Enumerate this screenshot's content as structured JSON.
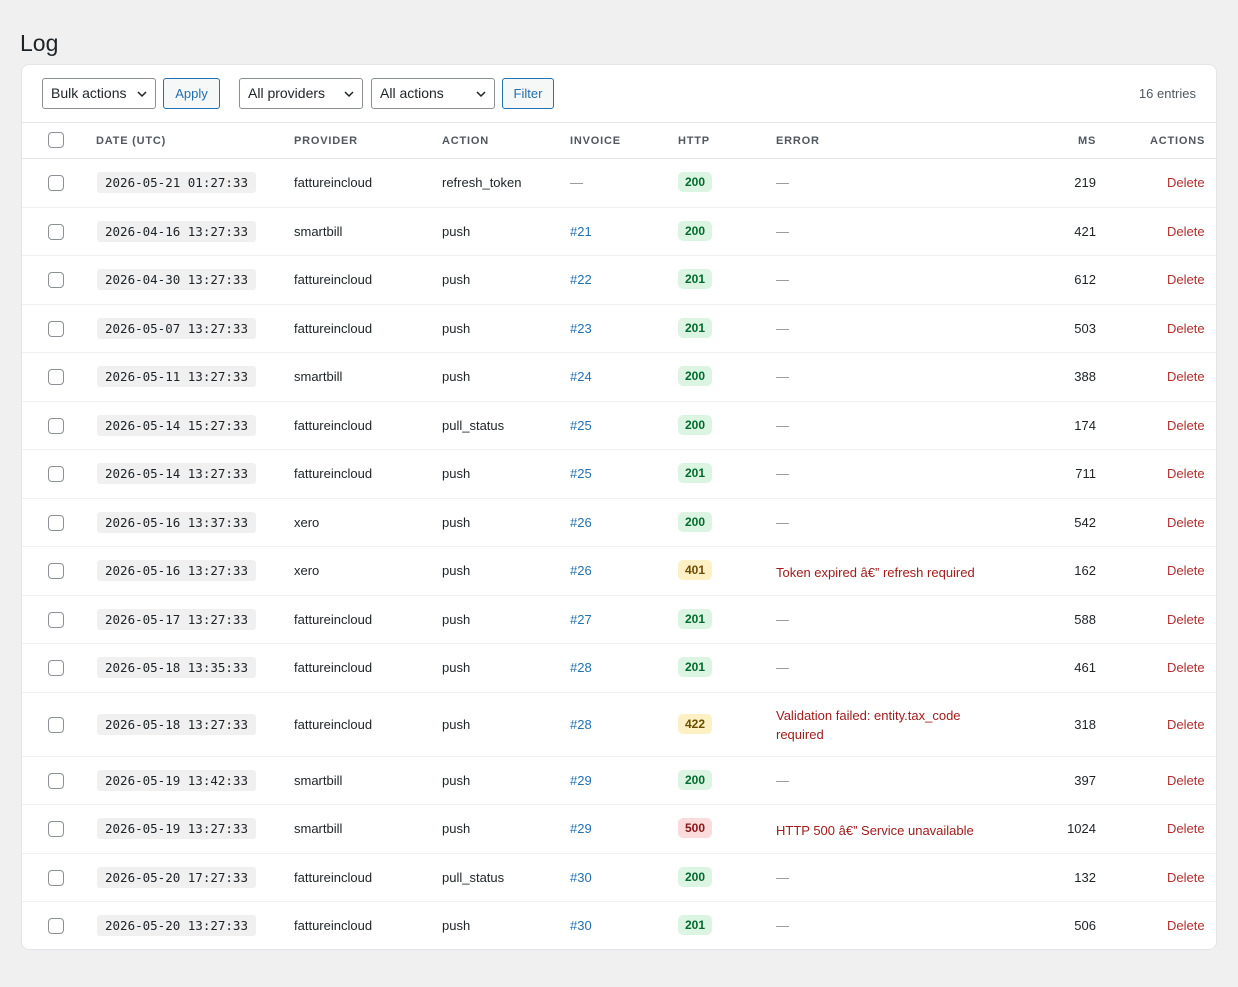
{
  "page": {
    "title": "Log"
  },
  "toolbar": {
    "bulk_actions": "Bulk actions",
    "apply": "Apply",
    "providers": "All providers",
    "actions": "All actions",
    "filter": "Filter",
    "entries": "16 entries"
  },
  "columns": [
    "DATE (UTC)",
    "PROVIDER",
    "ACTION",
    "INVOICE",
    "HTTP",
    "ERROR",
    "MS",
    "ACTIONS"
  ],
  "delete_label": "Delete",
  "rows": [
    {
      "date": "2026-05-21 01:27:33",
      "provider": "fattureincloud",
      "action": "refresh_token",
      "invoice": "—",
      "http": "200",
      "error": "—",
      "ms": "219"
    },
    {
      "date": "2026-04-16 13:27:33",
      "provider": "smartbill",
      "action": "push",
      "invoice": "#21",
      "http": "200",
      "error": "—",
      "ms": "421"
    },
    {
      "date": "2026-04-30 13:27:33",
      "provider": "fattureincloud",
      "action": "push",
      "invoice": "#22",
      "http": "201",
      "error": "—",
      "ms": "612"
    },
    {
      "date": "2026-05-07 13:27:33",
      "provider": "fattureincloud",
      "action": "push",
      "invoice": "#23",
      "http": "201",
      "error": "—",
      "ms": "503"
    },
    {
      "date": "2026-05-11 13:27:33",
      "provider": "smartbill",
      "action": "push",
      "invoice": "#24",
      "http": "200",
      "error": "—",
      "ms": "388"
    },
    {
      "date": "2026-05-14 15:27:33",
      "provider": "fattureincloud",
      "action": "pull_status",
      "invoice": "#25",
      "http": "200",
      "error": "—",
      "ms": "174"
    },
    {
      "date": "2026-05-14 13:27:33",
      "provider": "fattureincloud",
      "action": "push",
      "invoice": "#25",
      "http": "201",
      "error": "—",
      "ms": "711"
    },
    {
      "date": "2026-05-16 13:37:33",
      "provider": "xero",
      "action": "push",
      "invoice": "#26",
      "http": "200",
      "error": "—",
      "ms": "542"
    },
    {
      "date": "2026-05-16 13:27:33",
      "provider": "xero",
      "action": "push",
      "invoice": "#26",
      "http": "401",
      "error": "Token expired â€” refresh required",
      "ms": "162"
    },
    {
      "date": "2026-05-17 13:27:33",
      "provider": "fattureincloud",
      "action": "push",
      "invoice": "#27",
      "http": "201",
      "error": "—",
      "ms": "588"
    },
    {
      "date": "2026-05-18 13:35:33",
      "provider": "fattureincloud",
      "action": "push",
      "invoice": "#28",
      "http": "201",
      "error": "—",
      "ms": "461"
    },
    {
      "date": "2026-05-18 13:27:33",
      "provider": "fattureincloud",
      "action": "push",
      "invoice": "#28",
      "http": "422",
      "error": "Validation failed: entity.tax_code required",
      "ms": "318"
    },
    {
      "date": "2026-05-19 13:42:33",
      "provider": "smartbill",
      "action": "push",
      "invoice": "#29",
      "http": "200",
      "error": "—",
      "ms": "397"
    },
    {
      "date": "2026-05-19 13:27:33",
      "provider": "smartbill",
      "action": "push",
      "invoice": "#29",
      "http": "500",
      "error": "HTTP 500 â€” Service unavailable",
      "ms": "1024"
    },
    {
      "date": "2026-05-20 17:27:33",
      "provider": "fattureincloud",
      "action": "pull_status",
      "invoice": "#30",
      "http": "200",
      "error": "—",
      "ms": "132"
    },
    {
      "date": "2026-05-20 13:27:33",
      "provider": "fattureincloud",
      "action": "push",
      "invoice": "#30",
      "http": "201",
      "error": "—",
      "ms": "506"
    }
  ]
}
